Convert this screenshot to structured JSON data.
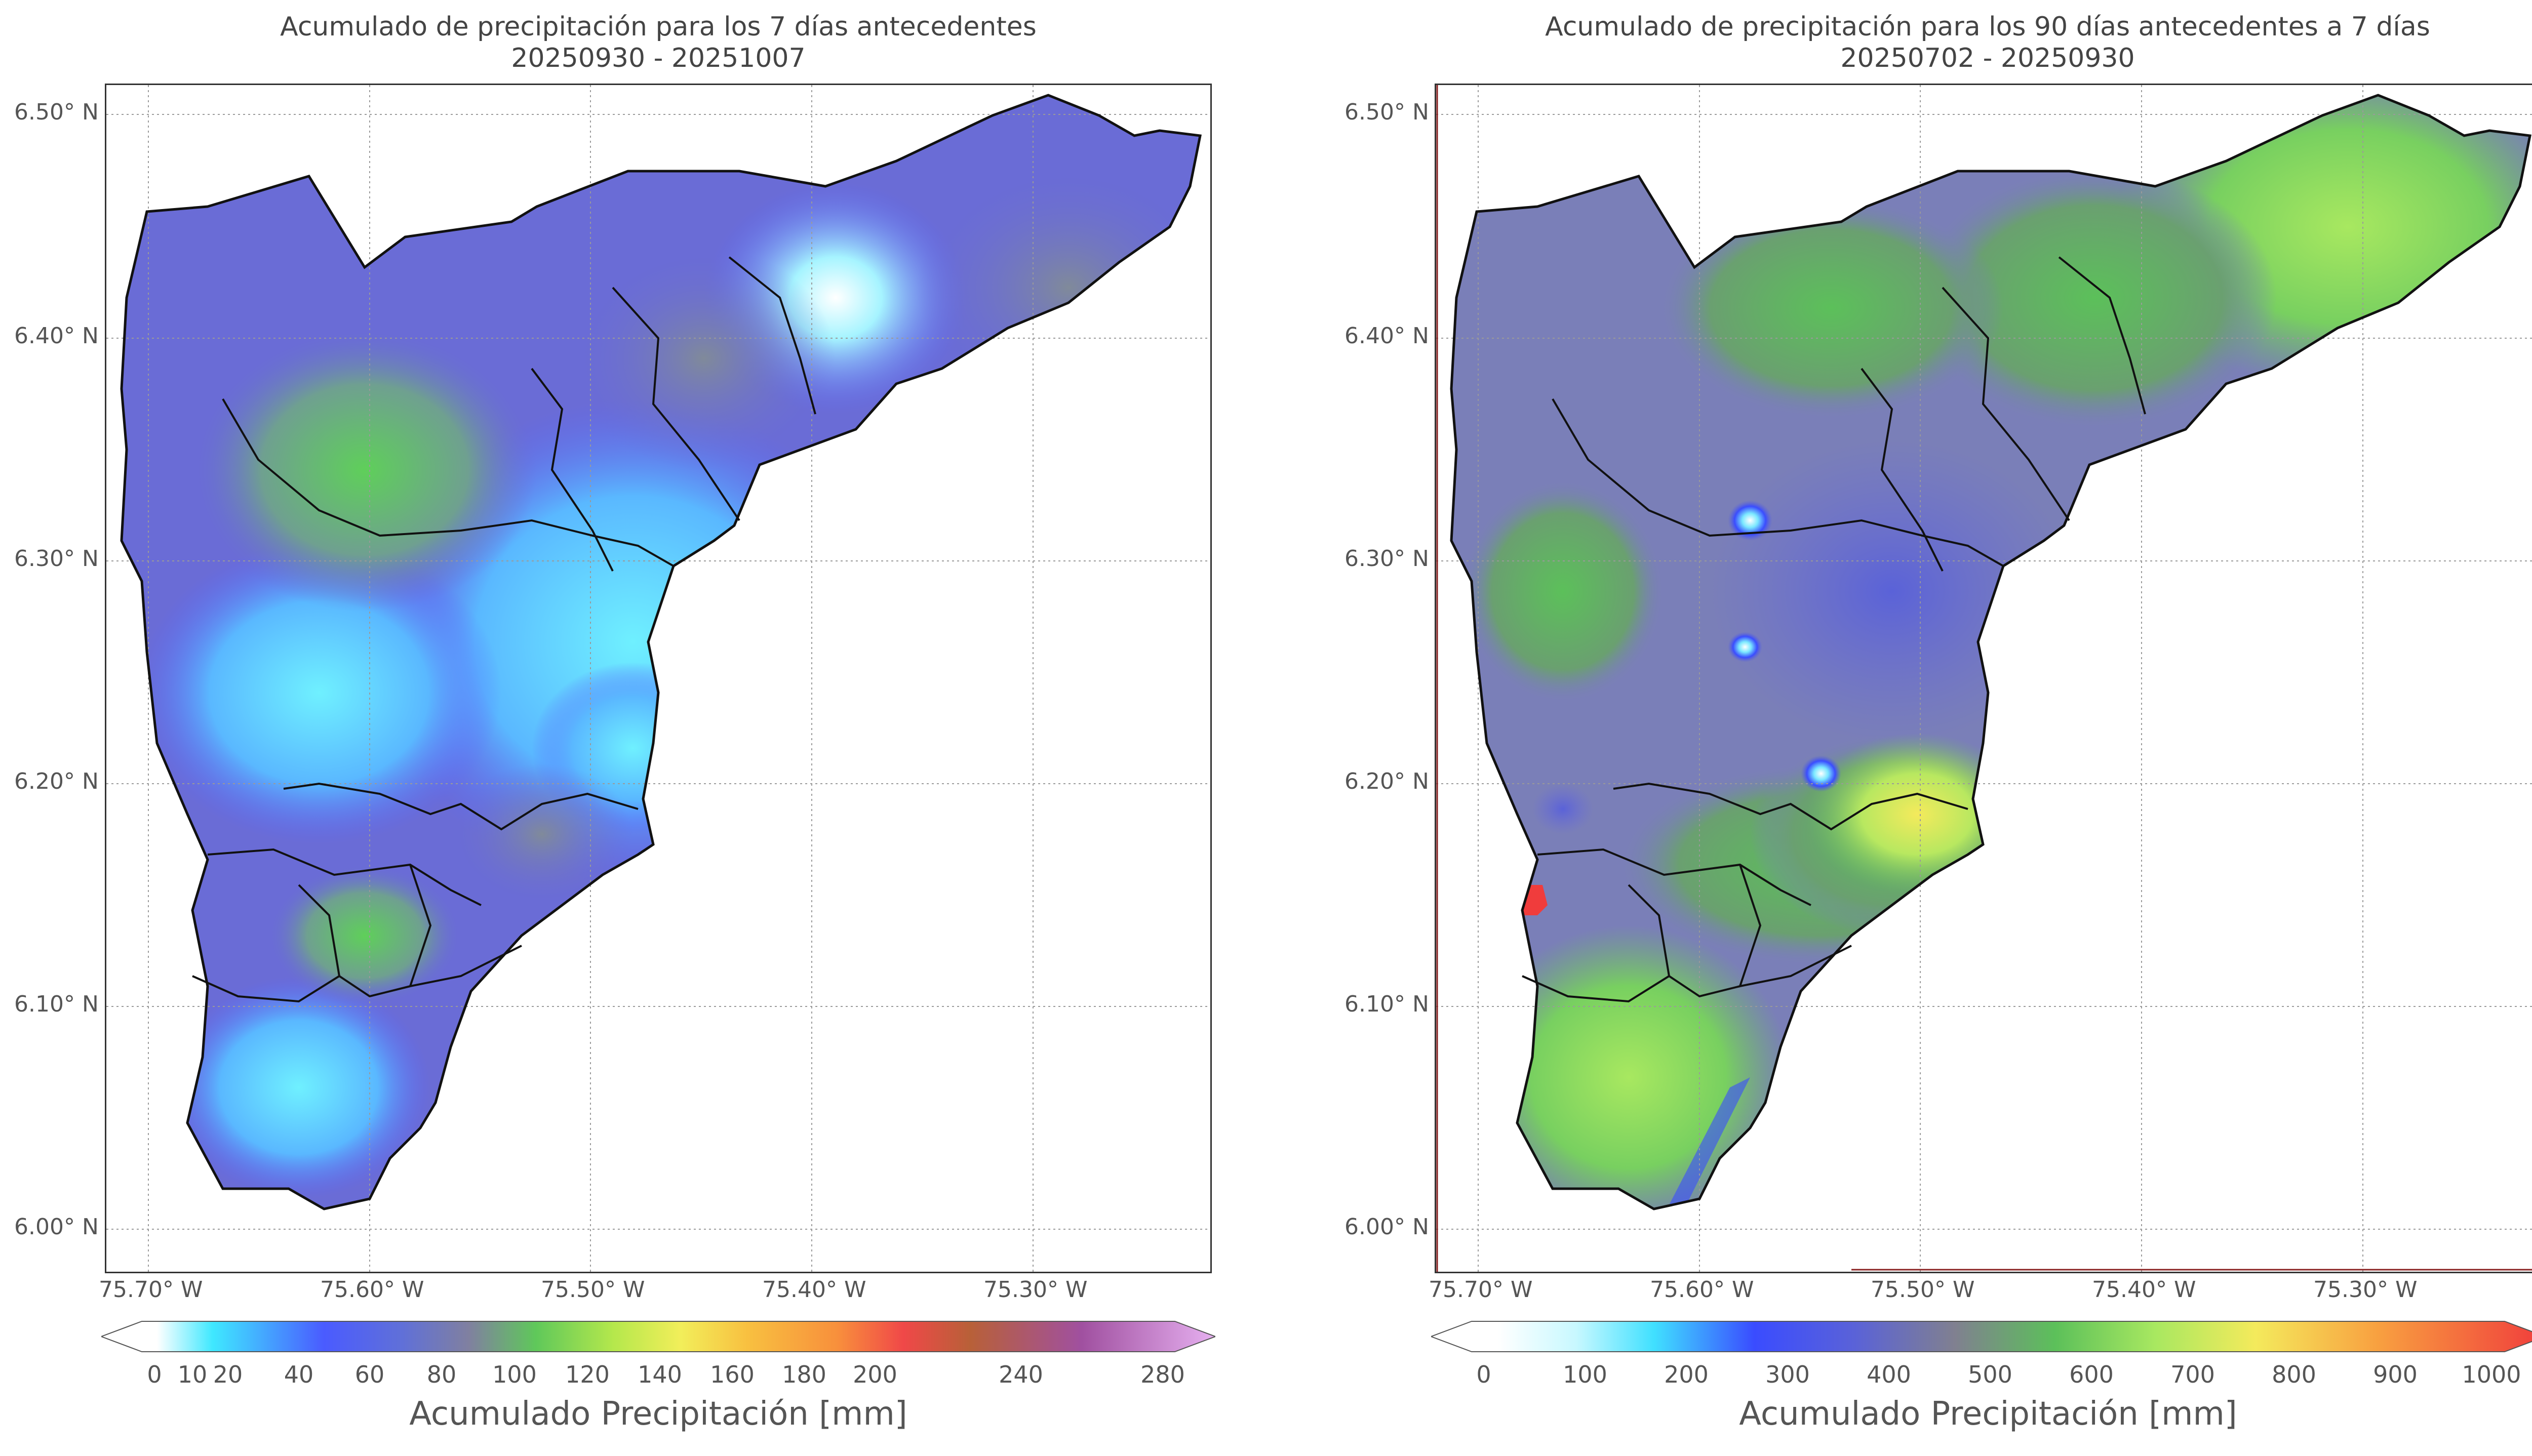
{
  "panels": [
    {
      "title_line1": "Acumulado de precipitación para los 7 días antecedentes",
      "title_line2": "20250930 - 20251007",
      "colorbar": {
        "label": "Acumulado Precipitación [mm]",
        "ticks": [
          "0",
          "10",
          "20",
          "40",
          "60",
          "80",
          "100",
          "120",
          "140",
          "160",
          "180",
          "200",
          "240",
          "280"
        ],
        "colors": [
          "#ffffff",
          "#3fe8ff",
          "#4a5bff",
          "#6070d8",
          "#8080a0",
          "#5fc85a",
          "#b5e84c",
          "#f2ee5a",
          "#f8c040",
          "#f8903c",
          "#f04848",
          "#b86038",
          "#a050a0",
          "#e6b0f0"
        ]
      }
    },
    {
      "title_line1": "Acumulado de precipitación para los 90 días antecedentes a 7 días",
      "title_line2": "20250702 - 20250930",
      "colorbar": {
        "label": "Acumulado Precipitación [mm]",
        "ticks": [
          "0",
          "100",
          "200",
          "300",
          "400",
          "500",
          "600",
          "700",
          "800",
          "900",
          "1000"
        ],
        "colors": [
          "#ffffff",
          "#c8f8ff",
          "#40e0ff",
          "#3a4cff",
          "#5a62d8",
          "#808090",
          "#5cc05a",
          "#a8e860",
          "#f4ea5c",
          "#f8a040",
          "#f03c3c"
        ]
      }
    }
  ],
  "axes": {
    "lat_ticks": [
      "6.50° N",
      "6.40° N",
      "6.30° N",
      "6.20° N",
      "6.10° N",
      "6.00° N"
    ],
    "lon_ticks": [
      "75.70° W",
      "75.60° W",
      "75.50° W",
      "75.40° W",
      "75.30° W"
    ]
  },
  "colors": {
    "left_base": "#6a6cd6",
    "right_base": "#7a7fb8",
    "boundary": "#111111"
  }
}
